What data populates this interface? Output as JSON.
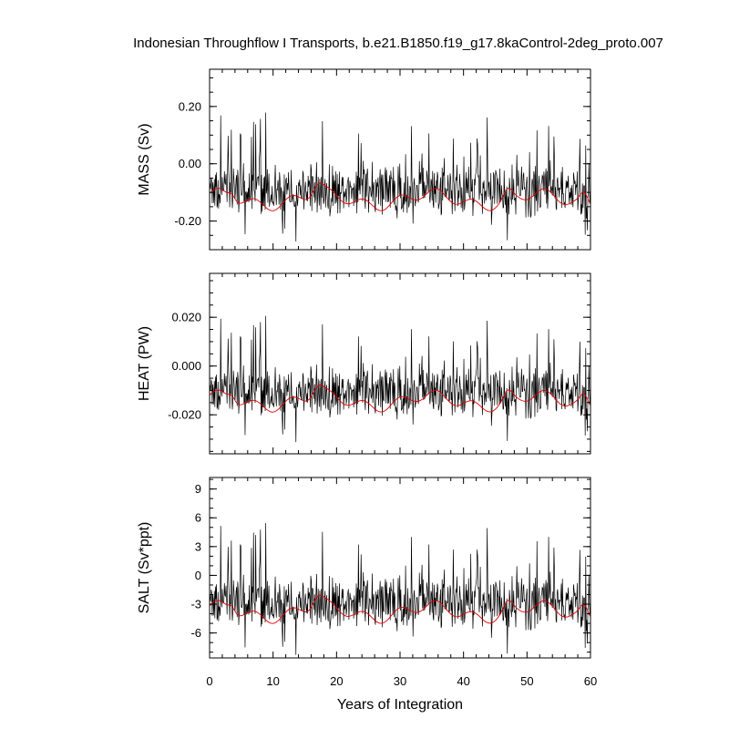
{
  "chart_data": {
    "type": "line",
    "title": "Indonesian Throughflow I Transports, b.e21.B1850.f19_g17.8kaControl-2deg_proto.007",
    "xlabel": "Years of Integration",
    "xlim": [
      0,
      60
    ],
    "x_ticks": [
      0,
      10,
      20,
      30,
      40,
      50,
      60
    ],
    "x_tick_labels": [
      "0",
      "10",
      "20",
      "30",
      "40",
      "50",
      "60"
    ],
    "series_colors": {
      "monthly": "#000000",
      "annual_smooth": "#e00000"
    },
    "panels": [
      {
        "ylabel": "MASS (Sv)",
        "ylim": [
          -0.3,
          0.33
        ],
        "y_ticks": [
          0.2,
          0.0,
          -0.2
        ],
        "y_tick_labels": [
          "0.20",
          "0.00",
          "-0.20"
        ],
        "minor_step": 0.05,
        "scale": 1.0,
        "amp": 0.088,
        "mean": -0.09,
        "series": [
          {
            "name": "monthly",
            "x_start": 0,
            "x_end": 60,
            "n_points": 720,
            "approx_min": -0.3,
            "approx_max": 0.32
          },
          {
            "name": "annual_smooth",
            "x_start": 0,
            "x_end": 60,
            "approx_min": -0.12,
            "approx_max": 0.0
          }
        ]
      },
      {
        "ylabel": "HEAT (PW)",
        "ylim": [
          -0.036,
          0.038
        ],
        "y_ticks": [
          0.02,
          0.0,
          -0.02
        ],
        "y_tick_labels": [
          "0.020",
          "0.000",
          "-0.020"
        ],
        "minor_step": 0.005,
        "scale": 0.115,
        "amp": 0.088,
        "mean": -0.09,
        "series": [
          {
            "name": "monthly",
            "x_start": 0,
            "x_end": 60,
            "n_points": 720,
            "approx_min": -0.034,
            "approx_max": 0.037
          },
          {
            "name": "annual_smooth",
            "x_start": 0,
            "x_end": 60,
            "approx_min": -0.013,
            "approx_max": 0.0
          }
        ]
      },
      {
        "ylabel": "SALT (Sv*ppt)",
        "ylim": [
          -8.6,
          10.2
        ],
        "y_ticks": [
          9,
          6,
          3,
          0,
          -3,
          -6
        ],
        "y_tick_labels": [
          "9",
          "6",
          "3",
          "0",
          "-3",
          "-6"
        ],
        "minor_step": 1,
        "scale": 30.5,
        "amp": 0.088,
        "mean": -0.09,
        "series": [
          {
            "name": "monthly",
            "x_start": 0,
            "x_end": 60,
            "n_points": 720,
            "approx_min": -8.5,
            "approx_max": 10.0
          },
          {
            "name": "annual_smooth",
            "x_start": 0,
            "x_end": 60,
            "approx_min": -3.4,
            "approx_max": 0.0
          }
        ]
      }
    ]
  }
}
